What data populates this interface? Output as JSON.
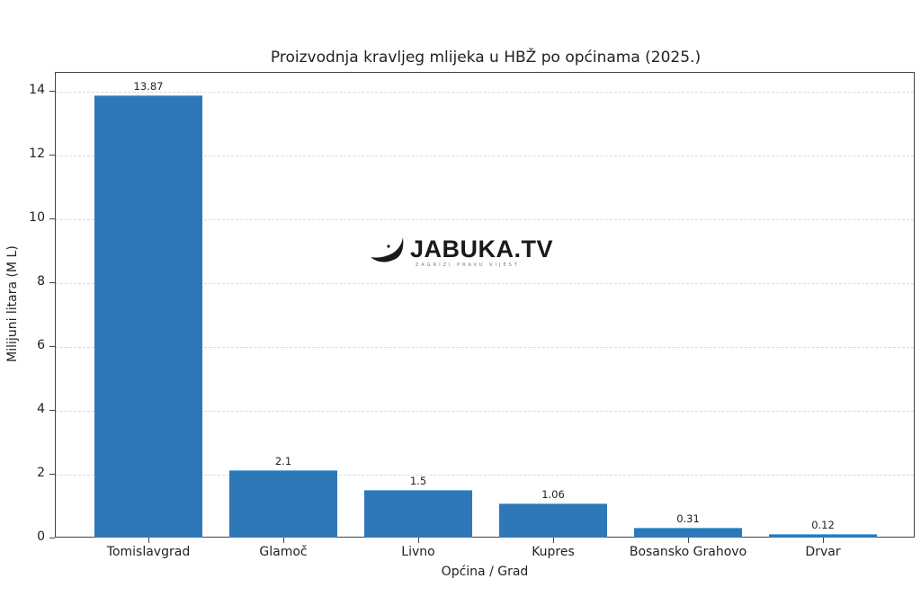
{
  "chart_data": {
    "type": "bar",
    "title": "Proizvodnja kravljeg mlijeka u HBŽ po općinama (2025.)",
    "xlabel": "Općina / Grad",
    "ylabel": "Milijuni litara (M L)",
    "categories": [
      "Tomislavgrad",
      "Glamoč",
      "Livno",
      "Kupres",
      "Bosansko Grahovo",
      "Drvar"
    ],
    "values": [
      13.87,
      2.1,
      1.5,
      1.06,
      0.31,
      0.12
    ],
    "value_labels": [
      "13.87",
      "2.1",
      "1.5",
      "1.06",
      "0.31",
      "0.12"
    ],
    "ylim": [
      0,
      14.6
    ],
    "yticks": [
      "0",
      "2",
      "4",
      "6",
      "8",
      "10",
      "12",
      "14"
    ],
    "grid": "y-dashed",
    "bar_color": "#2e78b7",
    "legend": null
  },
  "watermark": {
    "brand": "JABUKA.TV",
    "tagline": "ZAGRIZI PRAVU VIJEST"
  }
}
